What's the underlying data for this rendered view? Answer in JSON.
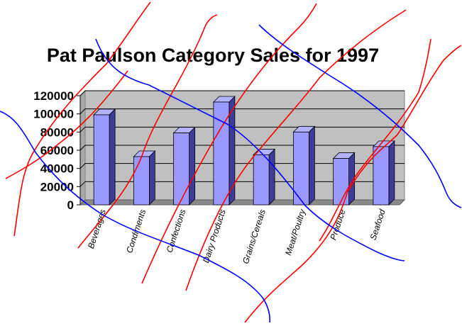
{
  "chart_data": {
    "type": "bar",
    "style": "3d-column",
    "title": "Pat Paulson Category Sales for 1997",
    "xlabel": "",
    "ylabel": "",
    "categories": [
      "Beverages",
      "Condiments",
      "Confections",
      "Dairy Products",
      "Grains/Cereals",
      "Meat/Poultry",
      "Produce",
      "Seafood"
    ],
    "values": [
      99000,
      53000,
      79000,
      113000,
      55000,
      80000,
      51000,
      64000
    ],
    "ylim": [
      0,
      120000
    ],
    "yticks": [
      "0",
      "20000",
      "40000",
      "60000",
      "80000",
      "100000",
      "120000"
    ],
    "grid": true,
    "legend": "none",
    "colors": {
      "bar_front": "#9999ff",
      "bar_side": "#3d3d99",
      "bar_top": "#b3b3ff",
      "plot_wall": "#c0c0c0",
      "plot_floor": "#8a8a8a",
      "red_scribble": "#ff0000",
      "blue_scribble": "#0000ff"
    }
  }
}
